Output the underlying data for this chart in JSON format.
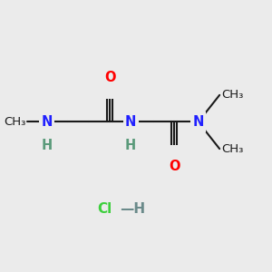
{
  "bg_color": "#ebebeb",
  "bond_color": "#1a1a1a",
  "N_color": "#2020ff",
  "O_color": "#ff0000",
  "H_color": "#5a9a7a",
  "Cl_color": "#3dcf3d",
  "H_dash_color": "#6a8a8a",
  "line_width": 1.5,
  "xlim": [
    0.0,
    1.0
  ],
  "ylim": [
    0.0,
    1.0
  ]
}
